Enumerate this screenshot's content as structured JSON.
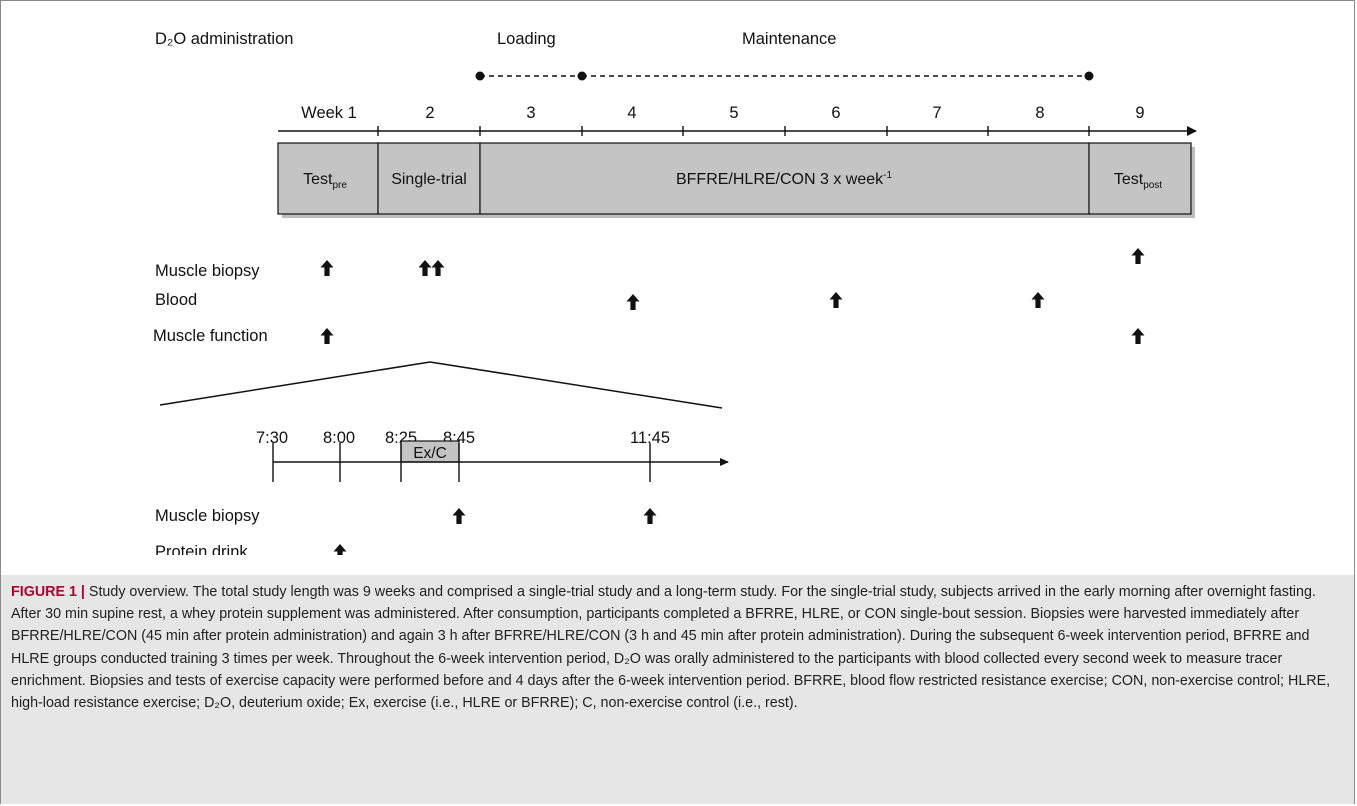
{
  "diagram": {
    "d2o_admin_label": "D₂O administration",
    "loading_label": "Loading",
    "maintenance_label": "Maintenance",
    "weeks": [
      "Week 1",
      "2",
      "3",
      "4",
      "5",
      "6",
      "7",
      "8",
      "9"
    ],
    "phase_boxes": {
      "test_pre": "Test",
      "test_pre_sub": "pre",
      "single_trial": "Single-trial",
      "training": "BFFRE/HLRE/CON  3 x week",
      "training_sup": "-1",
      "test_post": "Test",
      "test_post_sub": "post"
    },
    "measure_rows": [
      "Muscle biopsy",
      "Blood",
      "Muscle function"
    ],
    "single_trial_times": [
      "7:30",
      "8:00",
      "8:25",
      "8:45",
      "11:45"
    ],
    "ex_c_label": "Ex/C",
    "single_trial_rows": [
      "Muscle biopsy",
      "Protein drink"
    ]
  },
  "caption": {
    "label": "FIGURE 1 |",
    "text": "Study overview. The total study length was 9 weeks and comprised a single-trial study and a long-term study. For the single-trial study, subjects arrived in the early morning after overnight fasting. After 30 min supine rest, a whey protein supplement was administered. After consumption, participants completed a BFRRE, HLRE, or CON single-bout session. Biopsies were harvested immediately after BFRRE/HLRE/CON (45 min after protein administration) and again 3 h after BFRRE/HLRE/CON (3 h and 45 min after protein administration). During the subsequent 6-week intervention period, BFRRE and HLRE groups conducted training 3 times per week. Throughout the 6-week intervention period, D₂O was orally administered to the participants with blood collected every second week to measure tracer enrichment. Biopsies and tests of exercise capacity were performed before and 4 days after the 6-week intervention period. BFRRE, blood flow restricted resistance exercise; CON, non-exercise control; HLRE, high-load resistance exercise; D₂O, deuterium oxide; Ex, exercise (i.e., HLRE or BFRRE); C, non-exercise control (i.e., rest)."
  }
}
